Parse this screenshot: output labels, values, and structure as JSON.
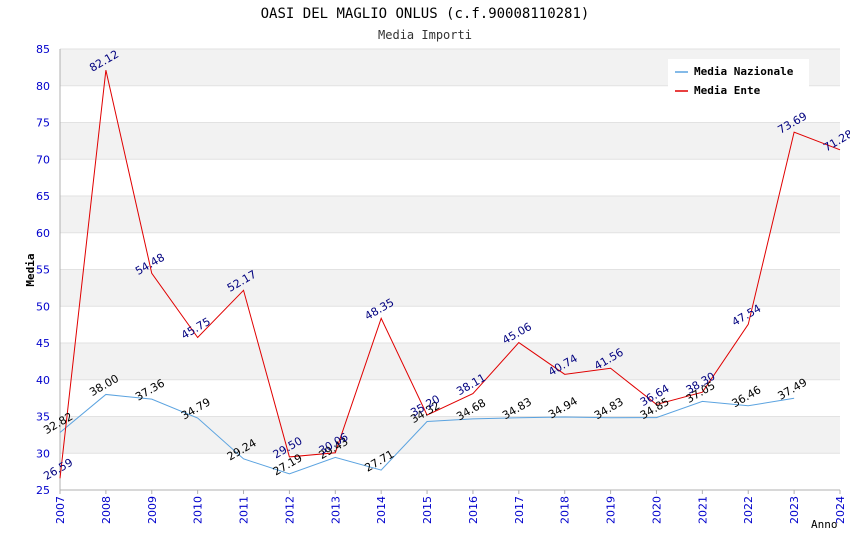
{
  "chart_data": {
    "type": "line",
    "title": "OASI DEL MAGLIO ONLUS (c.f.90008110281)",
    "subtitle": "Media Importi",
    "xlabel": "Anno",
    "ylabel": "Media",
    "ylim": [
      25,
      85
    ],
    "yticks": [
      "25",
      "30",
      "35",
      "40",
      "45",
      "50",
      "55",
      "60",
      "65",
      "70",
      "75",
      "80",
      "85"
    ],
    "categories": [
      "2007",
      "2008",
      "2009",
      "2010",
      "2011",
      "2012",
      "2013",
      "2014",
      "2015",
      "2016",
      "2017",
      "2018",
      "2019",
      "2020",
      "2021",
      "2022",
      "2023",
      "2024"
    ],
    "grid": true,
    "legend_position": "top-right",
    "series": [
      {
        "name": "Media Nazionale",
        "color": "#5ba3e0",
        "label_color": "#000000",
        "values": [
          32.82,
          38.0,
          37.36,
          34.79,
          29.24,
          27.19,
          29.43,
          27.71,
          34.32,
          34.68,
          34.83,
          34.94,
          34.83,
          34.85,
          37.05,
          36.46,
          37.49,
          null
        ],
        "labels": [
          "32.82",
          "38.00",
          "37.36",
          "34.79",
          "29.24",
          "27.19",
          "29.43",
          "27.71",
          "34.32",
          "34.68",
          "34.83",
          "34.94",
          "34.83",
          "34.85",
          "37.05",
          "36.46",
          "37.49",
          null
        ]
      },
      {
        "name": "Media Ente",
        "color": "#e00000",
        "label_color": "#00007f",
        "values": [
          26.59,
          82.12,
          54.48,
          45.75,
          52.17,
          29.5,
          30.06,
          48.35,
          35.2,
          38.11,
          45.06,
          40.74,
          41.56,
          36.64,
          38.3,
          47.54,
          73.69,
          71.28
        ],
        "labels": [
          "26.59",
          "82.12",
          "54.48",
          "45.75",
          "52.17",
          "29.50",
          "30.06",
          "48.35",
          "35.20",
          "38.11",
          "45.06",
          "40.74",
          "41.56",
          "36.64",
          "38.30",
          "47.54",
          "73.69",
          "71.28"
        ]
      }
    ]
  }
}
